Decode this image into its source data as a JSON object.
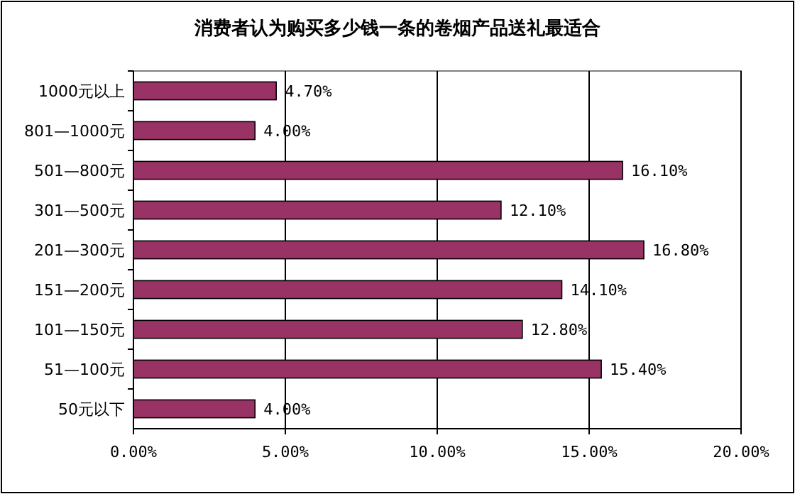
{
  "chart_data": {
    "type": "bar",
    "orientation": "horizontal",
    "title": "消费者认为购买多少钱一条的卷烟产品送礼最适合",
    "categories": [
      "1000元以上",
      "801—1000元",
      "501—800元",
      "301—500元",
      "201—300元",
      "151—200元",
      "101—150元",
      "51—100元",
      "50元以下"
    ],
    "values": [
      4.7,
      4.0,
      16.1,
      12.1,
      16.8,
      14.1,
      12.8,
      15.4,
      4.0
    ],
    "value_labels": [
      "4.70%",
      "4.00%",
      "16.10%",
      "12.10%",
      "16.80%",
      "14.10%",
      "12.80%",
      "15.40%",
      "4.00%"
    ],
    "color": "#993366",
    "xlim": [
      0,
      20
    ],
    "xticks": [
      {
        "value": 0,
        "label": "0.00%"
      },
      {
        "value": 5,
        "label": "5.00%"
      },
      {
        "value": 10,
        "label": "10.00%"
      },
      {
        "value": 15,
        "label": "15.00%"
      },
      {
        "value": 20,
        "label": "20.00%"
      }
    ],
    "grid": "x"
  }
}
